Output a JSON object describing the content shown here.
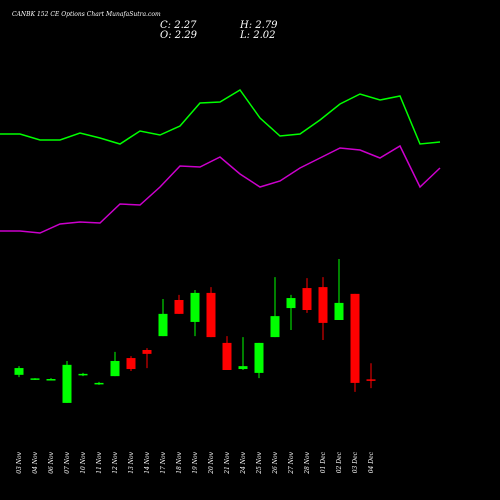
{
  "chart_data": {
    "type": "candlestick",
    "title": "CANBK 152  CE Options  Chart MunafaSutra.com",
    "header_labels": [
      "C:",
      "O:",
      "H:",
      "L:"
    ],
    "categories": [
      "03 Nov",
      "04 Nov",
      "06 Nov",
      "07 Nov",
      "10 Nov",
      "11 Nov",
      "12 Nov",
      "13 Nov",
      "14 Nov",
      "17 Nov",
      "18 Nov",
      "19 Nov",
      "20 Nov",
      "21 Nov",
      "24 Nov",
      "25 Nov",
      "26 Nov",
      "27 Nov",
      "28 Nov",
      "01 Dec",
      "02 Dec",
      "03 Dec",
      "04 Dec"
    ],
    "open": [
      2.43,
      2.3,
      2.29,
      1.56,
      2.43,
      2.15,
      2.39,
      2.95,
      3.2,
      3.63,
      4.75,
      4.07,
      4.97,
      3.42,
      2.61,
      2.49,
      3.6,
      4.5,
      5.12,
      5.15,
      4.13,
      4.94,
      2.29
    ],
    "close": [
      2.64,
      2.32,
      2.3,
      2.74,
      2.46,
      2.18,
      2.86,
      2.61,
      3.08,
      4.32,
      4.32,
      4.97,
      3.6,
      2.58,
      2.7,
      3.42,
      4.25,
      4.81,
      4.44,
      4.04,
      4.66,
      2.18,
      2.27
    ],
    "high": [
      2.7,
      2.33,
      2.33,
      2.86,
      2.49,
      2.21,
      3.14,
      3.01,
      3.26,
      4.78,
      4.91,
      5.06,
      5.15,
      3.63,
      3.6,
      3.42,
      5.46,
      4.91,
      5.43,
      5.46,
      6.02,
      4.94,
      2.79
    ],
    "low": [
      2.36,
      2.27,
      2.27,
      1.56,
      2.39,
      2.12,
      2.39,
      2.55,
      2.64,
      3.63,
      4.32,
      3.63,
      3.6,
      2.58,
      2.58,
      2.33,
      3.6,
      3.82,
      4.35,
      3.51,
      4.13,
      1.9,
      2.02
    ],
    "up_color": "#00ff00",
    "down_color": "#ff0000",
    "ylim": [
      1.34,
      6.3
    ],
    "lines": {
      "y2lim": [
        0,
        100
      ],
      "series": [
        {
          "color": "#00ff00",
          "values": [
            58,
            58,
            55,
            55,
            58.5,
            56,
            53,
            59.5,
            57.5,
            62,
            73.5,
            74,
            80,
            66,
            57,
            58,
            65,
            73,
            78,
            75,
            77,
            53,
            54
          ]
        },
        {
          "color": "#cc00cc",
          "values": [
            9.5,
            9.5,
            8.5,
            13,
            14,
            13.5,
            23,
            22.5,
            31.5,
            42,
            41.5,
            46.5,
            38,
            31.5,
            34.5,
            41,
            46,
            51,
            50,
            46,
            52,
            31.5,
            41
          ]
        }
      ]
    }
  }
}
